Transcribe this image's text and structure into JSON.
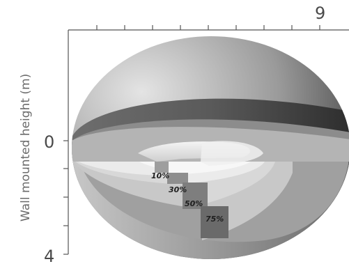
{
  "figure": {
    "y_axis_label": "Wall mounted height (m)",
    "top_axis_tick_label": "9",
    "left_axis_tick_labels": [
      "0",
      "4"
    ],
    "zone_labels": [
      "10%",
      "30%",
      "50%",
      "75%"
    ],
    "colors": {
      "outer_shell_light": "#dcdcdc",
      "outer_shell_dark": "#3c3c3c",
      "band_dark": "#4e4e4e",
      "band_mid": "#8f8f8f",
      "floor": "#a8a8a8",
      "inner_light": "#e6e6e6",
      "core_white": "#ffffff"
    }
  }
}
